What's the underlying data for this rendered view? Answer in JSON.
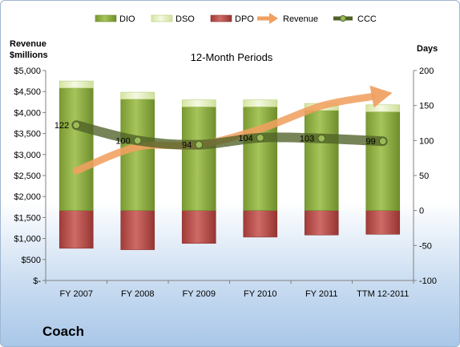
{
  "company": "Coach",
  "chart_data": {
    "type": "bar",
    "title": "12-Month Periods",
    "categories": [
      "FY 2007",
      "FY 2008",
      "FY 2009",
      "FY 2010",
      "FY 2011",
      "TTM 12-2011"
    ],
    "left_axis": {
      "label_line1": "Revenue",
      "label_line2": "$millions",
      "ticks": [
        "$-",
        "$500",
        "$1,000",
        "$1,500",
        "$2,000",
        "$2,500",
        "$3,000",
        "$3,500",
        "$4,000",
        "$4,500",
        "$5,000"
      ],
      "ylim": [
        0,
        5000
      ]
    },
    "right_axis": {
      "label": "Days",
      "ticks": [
        "-100",
        "-50",
        "0",
        "50",
        "100",
        "150",
        "200"
      ],
      "ylim": [
        -100,
        200
      ]
    },
    "legend_position": "top",
    "grid": false,
    "series": [
      {
        "name": "DIO",
        "kind": "stacked-bar",
        "axis": "right",
        "color": "#8fb040",
        "values": [
          175,
          159,
          148,
          148,
          143,
          141
        ]
      },
      {
        "name": "DSO",
        "kind": "stacked-bar",
        "axis": "right",
        "color": "#e6f0c0",
        "values": [
          10,
          10,
          10,
          10,
          10,
          10
        ]
      },
      {
        "name": "DPO",
        "kind": "bar-negative",
        "axis": "right",
        "color": "#c0504d",
        "values": [
          -54,
          -56,
          -47,
          -38,
          -35,
          -34
        ]
      },
      {
        "name": "Revenue",
        "kind": "arrow-line",
        "axis": "left",
        "color": "#f0a060",
        "values": [
          2612,
          3181,
          3230,
          3608,
          4159,
          4427
        ]
      },
      {
        "name": "CCC",
        "kind": "line",
        "axis": "right",
        "color": "#4f6228",
        "values": [
          122,
          100,
          94,
          104,
          103,
          99
        ],
        "labels": [
          "122",
          "100",
          "94",
          "104",
          "103",
          "99"
        ]
      }
    ]
  }
}
